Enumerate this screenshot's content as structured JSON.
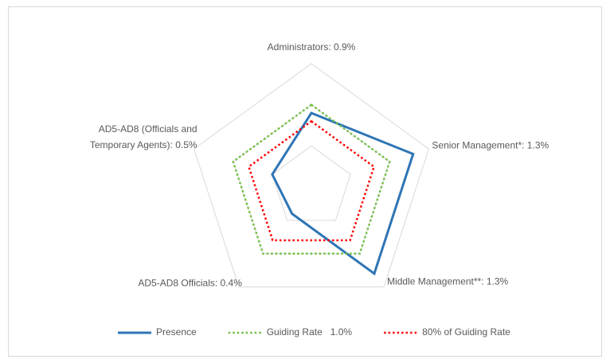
{
  "chart_data": {
    "type": "radar",
    "categories": [
      "Administrators: 0.9%",
      "Senior Management*: 1.3%",
      "Middle Management**: 1.3%",
      "AD5-AD8 Officials: 0.4%",
      "AD5-AD8 (Officials and Temporary Agents): 0.5%"
    ],
    "series": [
      {
        "name": "Presence",
        "color": "#2e75b6",
        "dash": "solid",
        "values": [
          0.9,
          1.3,
          1.3,
          0.4,
          0.5
        ]
      },
      {
        "name": "Guiding Rate   1.0%",
        "color": "#70c040",
        "dash": "dotted",
        "values": [
          1.0,
          1.0,
          1.0,
          1.0,
          1.0
        ]
      },
      {
        "name": "80% of Guiding Rate",
        "color": "#ff0000",
        "dash": "dotted",
        "values": [
          0.8,
          0.8,
          0.8,
          0.8,
          0.8
        ]
      }
    ],
    "rlim": [
      0,
      1.5
    ],
    "rticks": [
      0,
      0.5,
      1,
      1.5
    ],
    "grid": true,
    "legend": "bottom"
  }
}
